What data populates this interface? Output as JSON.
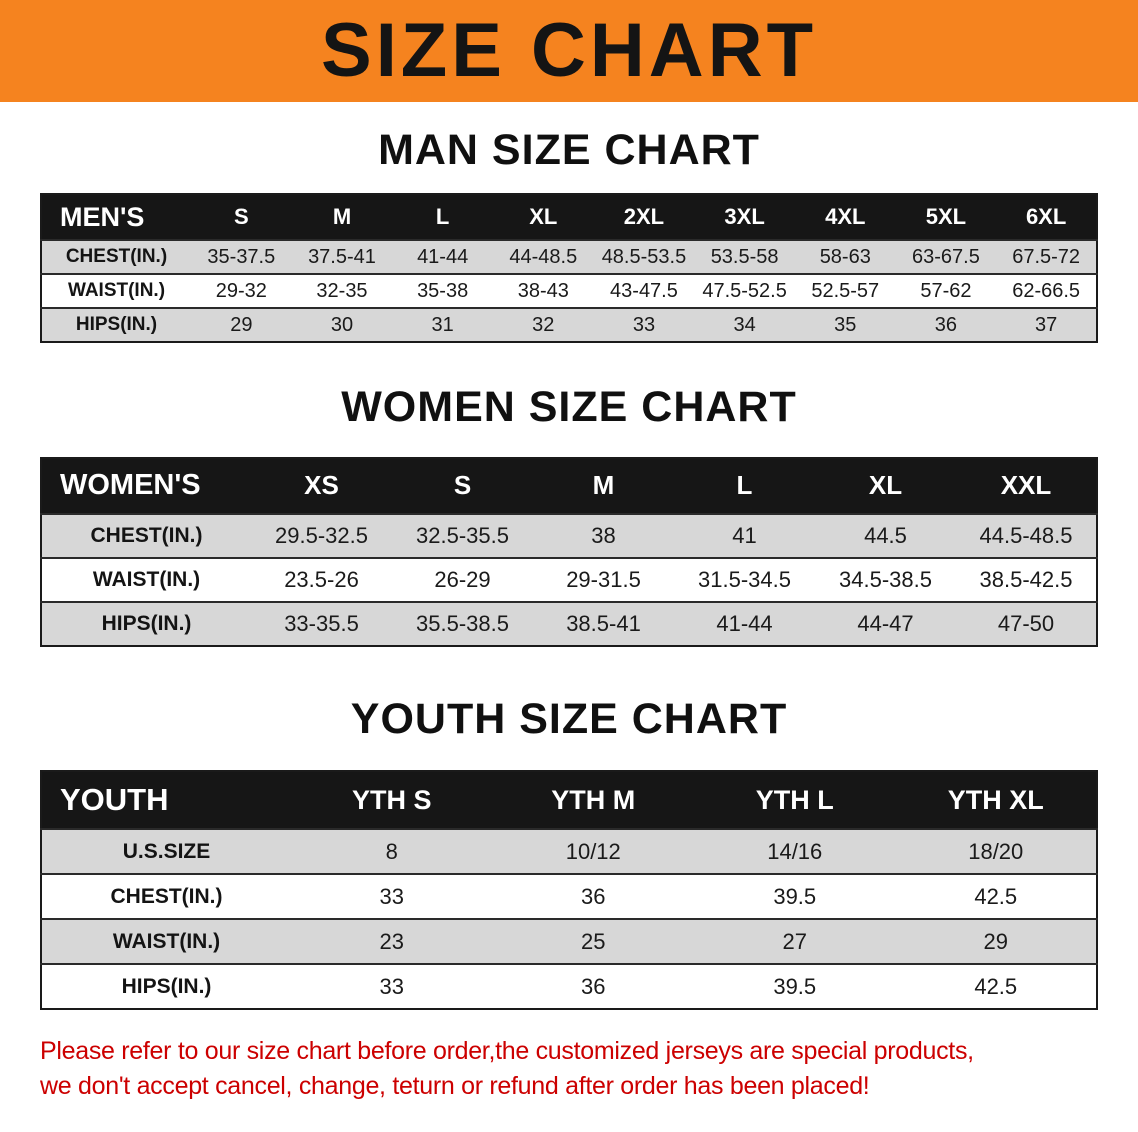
{
  "banner": {
    "title": "SIZE CHART"
  },
  "theme": {
    "banner_bg": "#f5831f",
    "table_header_bg": "#161616",
    "table_header_text": "#ffffff",
    "row_shade": "#d7d7d7",
    "note_color": "#cc0000",
    "text_color": "#141414"
  },
  "chart_data": [
    {
      "type": "table",
      "title": "MAN SIZE CHART",
      "header": [
        "MEN'S",
        "S",
        "M",
        "L",
        "XL",
        "2XL",
        "3XL",
        "4XL",
        "5XL",
        "6XL"
      ],
      "rows": [
        [
          "CHEST(IN.)",
          "35-37.5",
          "37.5-41",
          "41-44",
          "44-48.5",
          "48.5-53.5",
          "53.5-58",
          "58-63",
          "63-67.5",
          "67.5-72"
        ],
        [
          "WAIST(IN.)",
          "29-32",
          "32-35",
          "35-38",
          "38-43",
          "43-47.5",
          "47.5-52.5",
          "52.5-57",
          "57-62",
          "62-66.5"
        ],
        [
          "HIPS(IN.)",
          "29",
          "30",
          "31",
          "32",
          "33",
          "34",
          "35",
          "36",
          "37"
        ]
      ]
    },
    {
      "type": "table",
      "title": "WOMEN SIZE CHART",
      "header": [
        "WOMEN'S",
        "XS",
        "S",
        "M",
        "L",
        "XL",
        "XXL"
      ],
      "rows": [
        [
          "CHEST(IN.)",
          "29.5-32.5",
          "32.5-35.5",
          "38",
          "41",
          "44.5",
          "44.5-48.5"
        ],
        [
          "WAIST(IN.)",
          "23.5-26",
          "26-29",
          "29-31.5",
          "31.5-34.5",
          "34.5-38.5",
          "38.5-42.5"
        ],
        [
          "HIPS(IN.)",
          "33-35.5",
          "35.5-38.5",
          "38.5-41",
          "41-44",
          "44-47",
          "47-50"
        ]
      ]
    },
    {
      "type": "table",
      "title": "YOUTH SIZE CHART",
      "header": [
        "YOUTH",
        "YTH S",
        "YTH M",
        "YTH L",
        "YTH XL"
      ],
      "rows": [
        [
          "U.S.SIZE",
          "8",
          "10/12",
          "14/16",
          "18/20"
        ],
        [
          "CHEST(IN.)",
          "33",
          "36",
          "39.5",
          "42.5"
        ],
        [
          "WAIST(IN.)",
          "23",
          "25",
          "27",
          "29"
        ],
        [
          "HIPS(IN.)",
          "33",
          "36",
          "39.5",
          "42.5"
        ]
      ]
    }
  ],
  "footer_note": {
    "lines": [
      "Please refer to our size chart before order,the customized jerseys are special products,",
      "we don't accept cancel, change, teturn or refund after order has been placed!"
    ]
  }
}
